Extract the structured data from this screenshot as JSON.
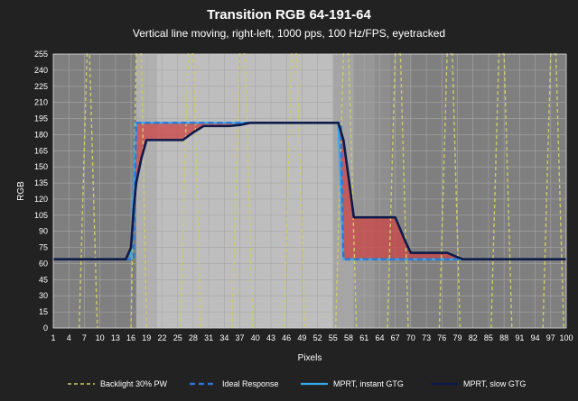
{
  "chart_data": {
    "type": "line",
    "title": "Transition RGB 64-191-64",
    "subtitle": "Vertical line moving, right-left, 1000 pps, 100 Hz/FPS, eyetracked",
    "xlabel": "Pixels",
    "ylabel": "RGB",
    "xlim": [
      1,
      100
    ],
    "ylim": [
      0,
      255
    ],
    "xticks": [
      1,
      4,
      7,
      10,
      13,
      16,
      19,
      22,
      25,
      28,
      31,
      34,
      37,
      40,
      43,
      46,
      49,
      52,
      55,
      58,
      61,
      64,
      67,
      70,
      73,
      76,
      79,
      82,
      85,
      88,
      91,
      94,
      97,
      100
    ],
    "yticks": [
      0,
      15,
      30,
      45,
      60,
      75,
      90,
      105,
      120,
      135,
      150,
      165,
      180,
      195,
      210,
      225,
      240,
      255
    ],
    "grid": true,
    "legend_position": "bottom",
    "colors": {
      "background": "#222222",
      "plot_area": "#7f7f7f",
      "gridline": "#a6a6a6",
      "backlight": "#cccc66",
      "ideal": "#2e75d6",
      "instant": "#33aaee",
      "slow": "#0d1a4a",
      "fill": "#cc4444"
    },
    "series": [
      {
        "name": "Backlight 30% PW",
        "style": "dashed",
        "pulses": [
          [
            6,
            7.5,
            8,
            9.5
          ],
          [
            16,
            17,
            18,
            19
          ],
          [
            25.5,
            27,
            28,
            29.5
          ],
          [
            35.5,
            37,
            38,
            39.5
          ],
          [
            45.5,
            47,
            48,
            49.5
          ],
          [
            55.5,
            57,
            58,
            59.5
          ],
          [
            65.5,
            67,
            68,
            69.5
          ],
          [
            75.5,
            77,
            78,
            79.5
          ],
          [
            85.5,
            87,
            88,
            89.5
          ],
          [
            95.5,
            97,
            98,
            99.5
          ]
        ]
      },
      {
        "name": "Ideal Response",
        "style": "dashed",
        "x": [
          1,
          16.5,
          17,
          56.5,
          57,
          100
        ],
        "y": [
          64,
          64,
          191,
          191,
          64,
          64
        ]
      },
      {
        "name": "MPRT, instant GTG",
        "style": "solid",
        "x": [
          1,
          16,
          17,
          56,
          57,
          100
        ],
        "y": [
          64,
          64,
          191,
          191,
          64,
          64
        ]
      },
      {
        "name": "MPRT, slow GTG",
        "style": "solid",
        "x": [
          1,
          15,
          16,
          16.5,
          17,
          18,
          19,
          26,
          28,
          30,
          35,
          37,
          39,
          56,
          57,
          58,
          59,
          60,
          67,
          69,
          70,
          77,
          78,
          79,
          80,
          100
        ],
        "y": [
          64,
          64,
          75,
          110,
          135,
          158,
          175,
          175,
          182,
          188,
          188,
          189,
          191,
          191,
          175,
          140,
          103,
          103,
          103,
          80,
          70,
          70,
          68,
          66,
          64,
          64
        ]
      }
    ],
    "shaded_bands": [
      {
        "from": 17,
        "to": 21,
        "level": 0.7
      },
      {
        "from": 21,
        "to": 55,
        "level": 0.9
      },
      {
        "from": 55,
        "to": 59,
        "level": 0.55
      },
      {
        "from": 59,
        "to": 63,
        "level": 0.35
      },
      {
        "from": 63,
        "to": 66,
        "level": 0.22
      },
      {
        "from": 66,
        "to": 70,
        "level": 0.12
      }
    ]
  }
}
